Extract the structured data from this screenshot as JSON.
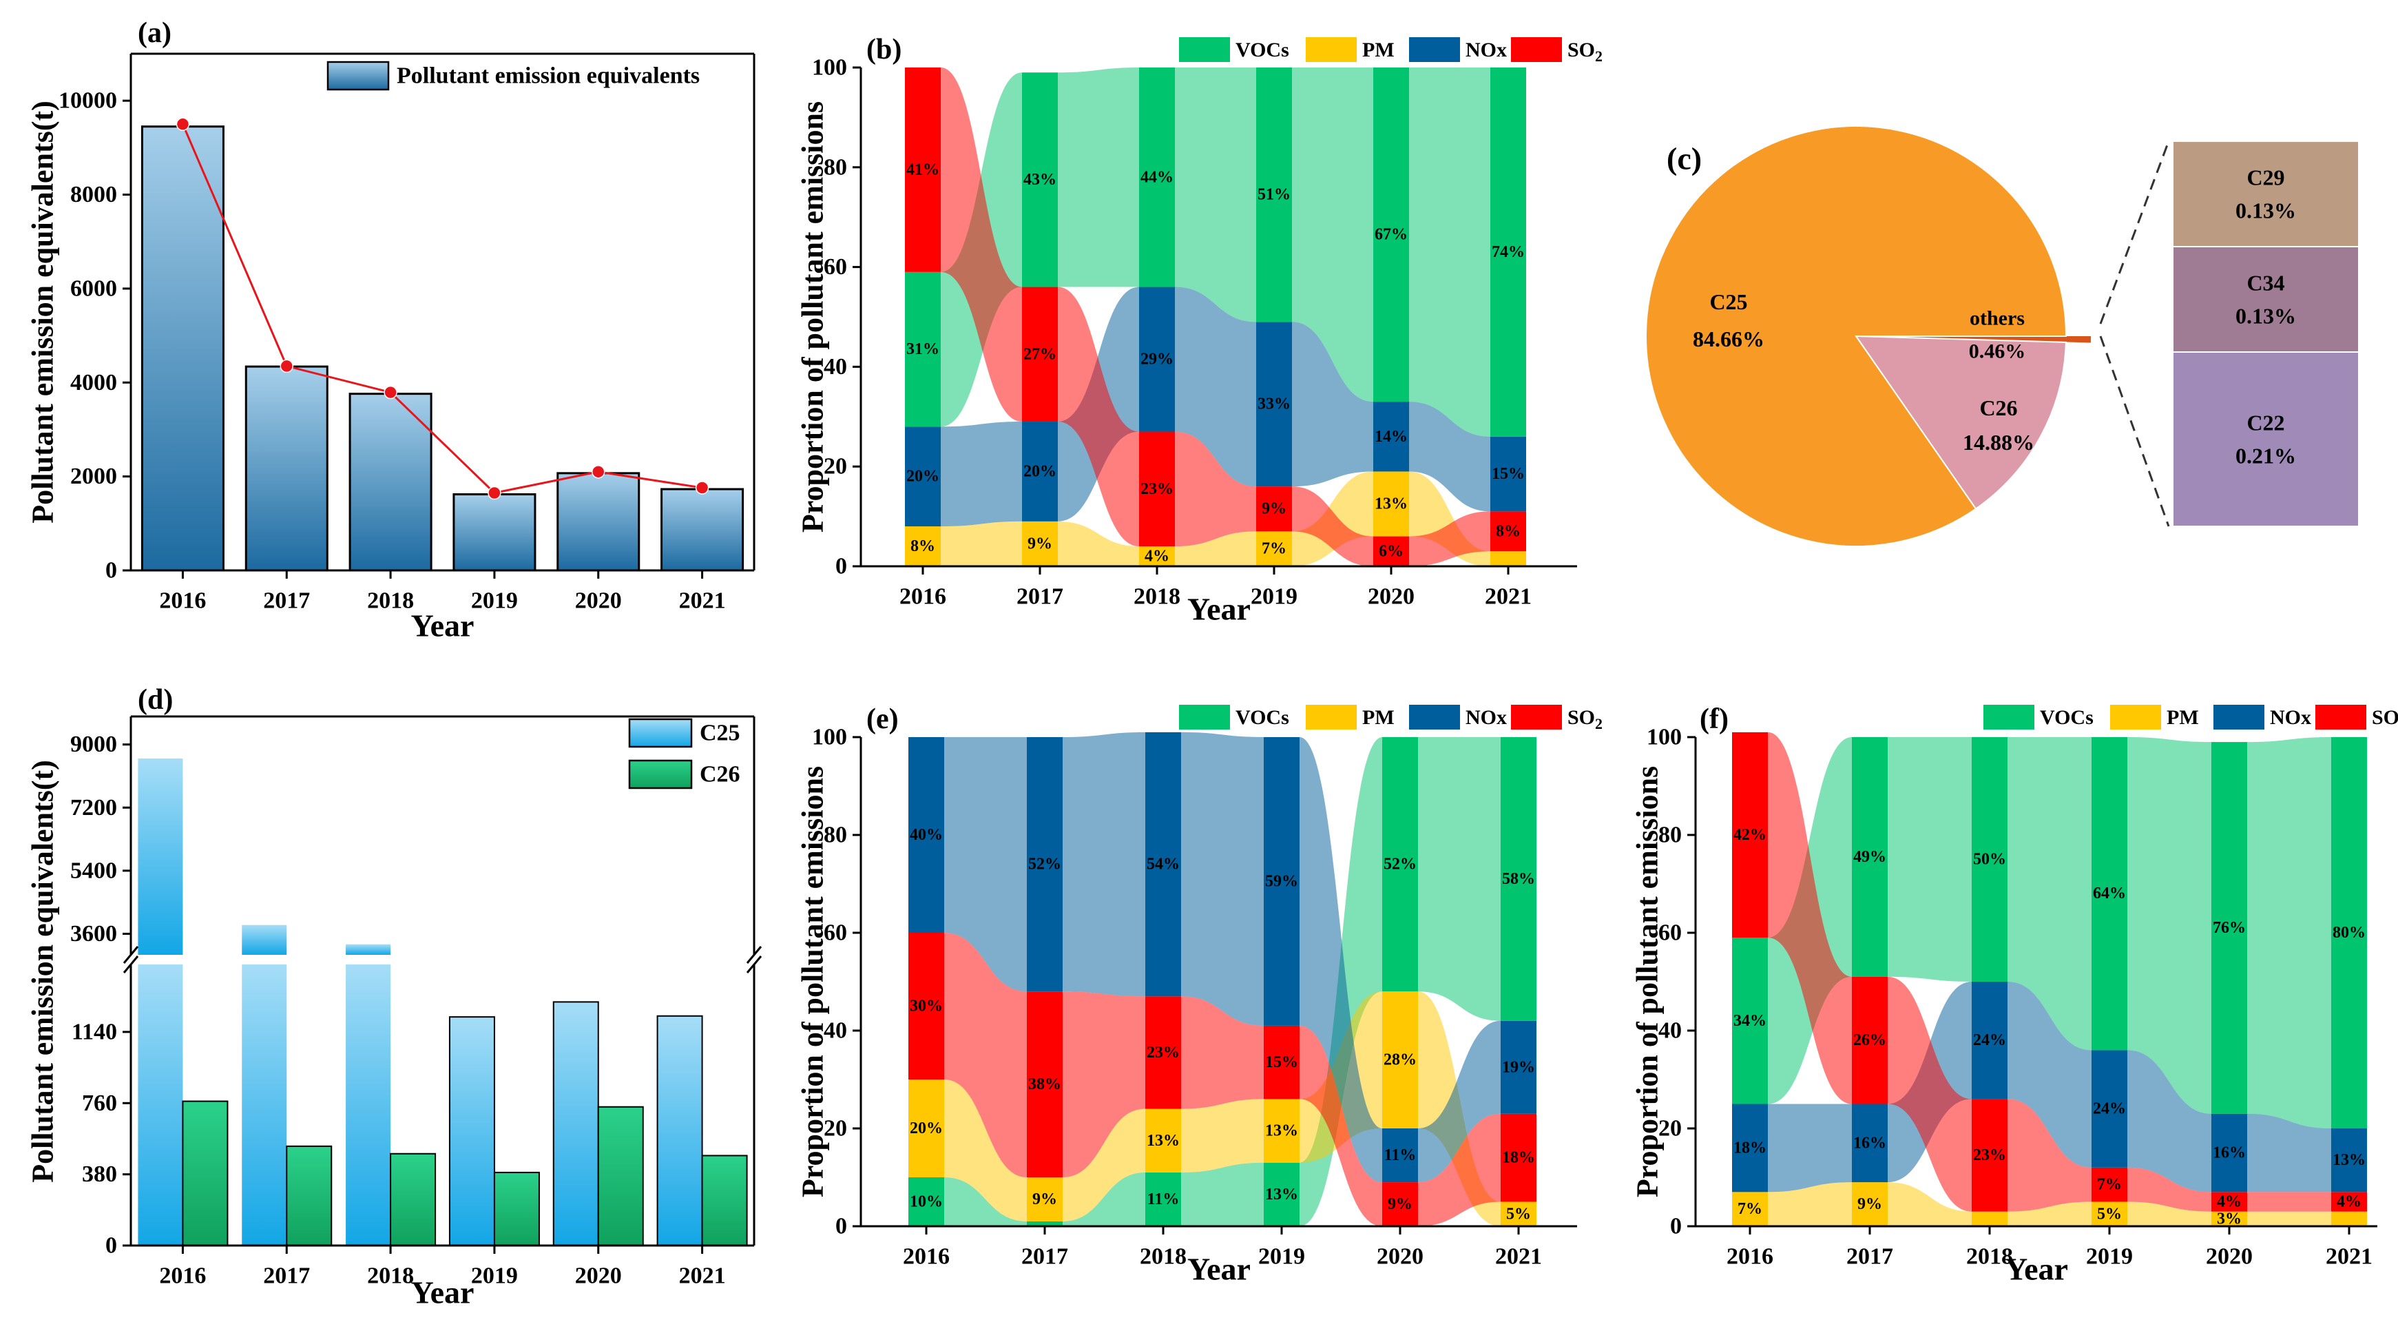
{
  "colors": {
    "VOCs": "#00c46e",
    "PM": "#ffc800",
    "NOx": "#005e9c",
    "SO2": "#ff0000",
    "c25": "#f89a26",
    "c26": "#dd9aa9",
    "c29": "#bb9b81",
    "c34": "#9f7c93",
    "c22": "#9f8ab8",
    "barTop": "#a6cfea",
    "barBottom": "#1c6aa0",
    "barC25Top": "#a6ddf7",
    "barC25Bottom": "#12a6e6",
    "barC26Top": "#2bd18a",
    "barC26Bottom": "#10a15e",
    "line": "#e8151b"
  },
  "panel_labels": {
    "a": "(a)",
    "b": "(b)",
    "c": "(c)",
    "d": "(d)",
    "e": "(e)",
    "f": "(f)"
  },
  "years": [
    "2016",
    "2017",
    "2018",
    "2019",
    "2020",
    "2021"
  ],
  "common": {
    "xlabel": "Year",
    "prop_ylabel": "Proportion of pollutant emissions"
  },
  "legend_pollutants": [
    {
      "key": "VOCs",
      "label": "VOCs"
    },
    {
      "key": "PM",
      "label": "PM"
    },
    {
      "key": "NOx",
      "label": "NOx"
    },
    {
      "key": "SO2",
      "label": "SO",
      "sub": "2"
    }
  ],
  "chart_data": [
    {
      "panel": "a",
      "type": "bar",
      "categories": [
        "2016",
        "2017",
        "2018",
        "2019",
        "2020",
        "2021"
      ],
      "values": [
        9450,
        4340,
        3760,
        1620,
        2070,
        1730
      ],
      "line_values": [
        9500,
        4350,
        3790,
        1650,
        2100,
        1760
      ],
      "legend": "Pollutant emission equivalents",
      "ylabel": "Pollutant emission equivalents(t)",
      "xlabel": "Year",
      "ylim": [
        0,
        11000
      ],
      "yticks": [
        0,
        2000,
        4000,
        6000,
        8000,
        10000
      ]
    },
    {
      "panel": "b",
      "type": "area",
      "categories": [
        "2016",
        "2017",
        "2018",
        "2019",
        "2020",
        "2021"
      ],
      "order_bottom_up": [
        "PM",
        "NOx",
        "VOCs",
        "SO2"
      ],
      "layers": [
        [
          "PM",
          "NOx",
          "VOCs",
          "SO2"
        ],
        [
          "PM",
          "NOx",
          "SO2",
          "VOCs"
        ],
        [
          "PM",
          "SO2",
          "NOx",
          "VOCs"
        ],
        [
          "PM",
          "SO2",
          "NOx",
          "VOCs"
        ],
        [
          "SO2",
          "PM",
          "NOx",
          "VOCs"
        ],
        [
          "PM",
          "SO2",
          "NOx",
          "VOCs"
        ]
      ],
      "series": [
        {
          "name": "VOCs",
          "values": [
            31,
            43,
            44,
            51,
            67,
            74
          ],
          "labels": [
            "31%",
            "43%",
            "44%",
            "51%",
            "67%",
            "74%"
          ]
        },
        {
          "name": "PM",
          "values": [
            8,
            9,
            4,
            7,
            13,
            3
          ],
          "labels": [
            "8%",
            "9%",
            "4%",
            "7%",
            "13%",
            ""
          ]
        },
        {
          "name": "NOx",
          "values": [
            20,
            20,
            29,
            33,
            14,
            15
          ],
          "labels": [
            "20%",
            "20%",
            "29%",
            "33%",
            "14%",
            "15%"
          ]
        },
        {
          "name": "SO2",
          "values": [
            41,
            27,
            23,
            9,
            6,
            8
          ],
          "labels": [
            "41%",
            "27%",
            "23%",
            "9%",
            "6%",
            "8%"
          ]
        }
      ],
      "ylabel": "Proportion of pollutant emissions",
      "xlabel": "Year",
      "ylim": [
        0,
        100
      ],
      "yticks": [
        0,
        20,
        40,
        60,
        80,
        100
      ]
    },
    {
      "panel": "c",
      "type": "pie",
      "slices": [
        {
          "name": "C25",
          "value": 84.66,
          "label": "84.66%"
        },
        {
          "name": "C26",
          "value": 14.88,
          "label": "14.88%"
        },
        {
          "name": "others",
          "value": 0.46,
          "label": "0.46%"
        }
      ],
      "breakdown": [
        {
          "name": "C29",
          "value": 0.13,
          "label": "0.13%"
        },
        {
          "name": "C34",
          "value": 0.13,
          "label": "0.13%"
        },
        {
          "name": "C22",
          "value": 0.21,
          "label": "0.21%"
        }
      ]
    },
    {
      "panel": "d",
      "type": "bar",
      "categories": [
        "2016",
        "2017",
        "2018",
        "2019",
        "2020",
        "2021"
      ],
      "series": [
        {
          "name": "C25",
          "values": [
            8600,
            3850,
            3300,
            1220,
            1300,
            1225
          ]
        },
        {
          "name": "C26",
          "values": [
            770,
            530,
            490,
            390,
            740,
            480
          ]
        }
      ],
      "ylabel": "Pollutant emission equivalents(t)",
      "xlabel": "Year",
      "lower_ylim": [
        0,
        1500
      ],
      "lower_yticks": [
        0,
        380,
        760,
        1140
      ],
      "upper_ylim": [
        3000,
        9800
      ],
      "upper_yticks": [
        3600,
        5400,
        7200,
        9000
      ]
    },
    {
      "panel": "e",
      "type": "area",
      "categories": [
        "2016",
        "2017",
        "2018",
        "2019",
        "2020",
        "2021"
      ],
      "layers": [
        [
          "VOCs",
          "PM",
          "SO2",
          "NOx"
        ],
        [
          "VOCs",
          "PM",
          "SO2",
          "NOx"
        ],
        [
          "VOCs",
          "PM",
          "SO2",
          "NOx"
        ],
        [
          "VOCs",
          "PM",
          "SO2",
          "NOx"
        ],
        [
          "SO2",
          "NOx",
          "PM",
          "VOCs"
        ],
        [
          "PM",
          "SO2",
          "NOx",
          "VOCs"
        ]
      ],
      "series": [
        {
          "name": "VOCs",
          "values": [
            10,
            1,
            11,
            13,
            52,
            58
          ],
          "labels": [
            "10%",
            "",
            "11%",
            "13%",
            "52%",
            "58%"
          ]
        },
        {
          "name": "PM",
          "values": [
            20,
            9,
            13,
            13,
            28,
            5
          ],
          "labels": [
            "20%",
            "9%",
            "13%",
            "13%",
            "28%",
            "5%"
          ]
        },
        {
          "name": "NOx",
          "values": [
            40,
            52,
            54,
            59,
            11,
            19
          ],
          "labels": [
            "40%",
            "52%",
            "54%",
            "59%",
            "11%",
            "19%"
          ]
        },
        {
          "name": "SO2",
          "values": [
            30,
            38,
            23,
            15,
            9,
            18
          ],
          "labels": [
            "30%",
            "38%",
            "23%",
            "15%",
            "9%",
            "18%"
          ]
        }
      ],
      "ylabel": "Proportion of pollutant emissions",
      "xlabel": "Year",
      "ylim": [
        0,
        100
      ],
      "yticks": [
        0,
        20,
        40,
        60,
        80,
        100
      ]
    },
    {
      "panel": "f",
      "type": "area",
      "categories": [
        "2016",
        "2017",
        "2018",
        "2019",
        "2020",
        "2021"
      ],
      "layers": [
        [
          "PM",
          "NOx",
          "VOCs",
          "SO2"
        ],
        [
          "PM",
          "NOx",
          "SO2",
          "VOCs"
        ],
        [
          "PM",
          "SO2",
          "NOx",
          "VOCs"
        ],
        [
          "PM",
          "SO2",
          "NOx",
          "VOCs"
        ],
        [
          "PM",
          "SO2",
          "NOx",
          "VOCs"
        ],
        [
          "PM",
          "SO2",
          "NOx",
          "VOCs"
        ]
      ],
      "series": [
        {
          "name": "VOCs",
          "values": [
            34,
            49,
            50,
            64,
            76,
            80
          ],
          "labels": [
            "34%",
            "49%",
            "50%",
            "64%",
            "76%",
            "80%"
          ]
        },
        {
          "name": "PM",
          "values": [
            7,
            9,
            3,
            5,
            3,
            3
          ],
          "labels": [
            "7%",
            "9%",
            "",
            "5%",
            "3%",
            ""
          ]
        },
        {
          "name": "NOx",
          "values": [
            18,
            16,
            24,
            24,
            16,
            13
          ],
          "labels": [
            "18%",
            "16%",
            "24%",
            "24%",
            "16%",
            "13%"
          ]
        },
        {
          "name": "SO2",
          "values": [
            42,
            26,
            23,
            7,
            4,
            4
          ],
          "labels": [
            "42%",
            "26%",
            "23%",
            "7%",
            "4%",
            "4%"
          ]
        }
      ],
      "ylabel": "Proportion of pollutant emissions",
      "xlabel": "Year",
      "ylim": [
        0,
        100
      ],
      "yticks": [
        0,
        20,
        40,
        60,
        80,
        100
      ]
    }
  ]
}
